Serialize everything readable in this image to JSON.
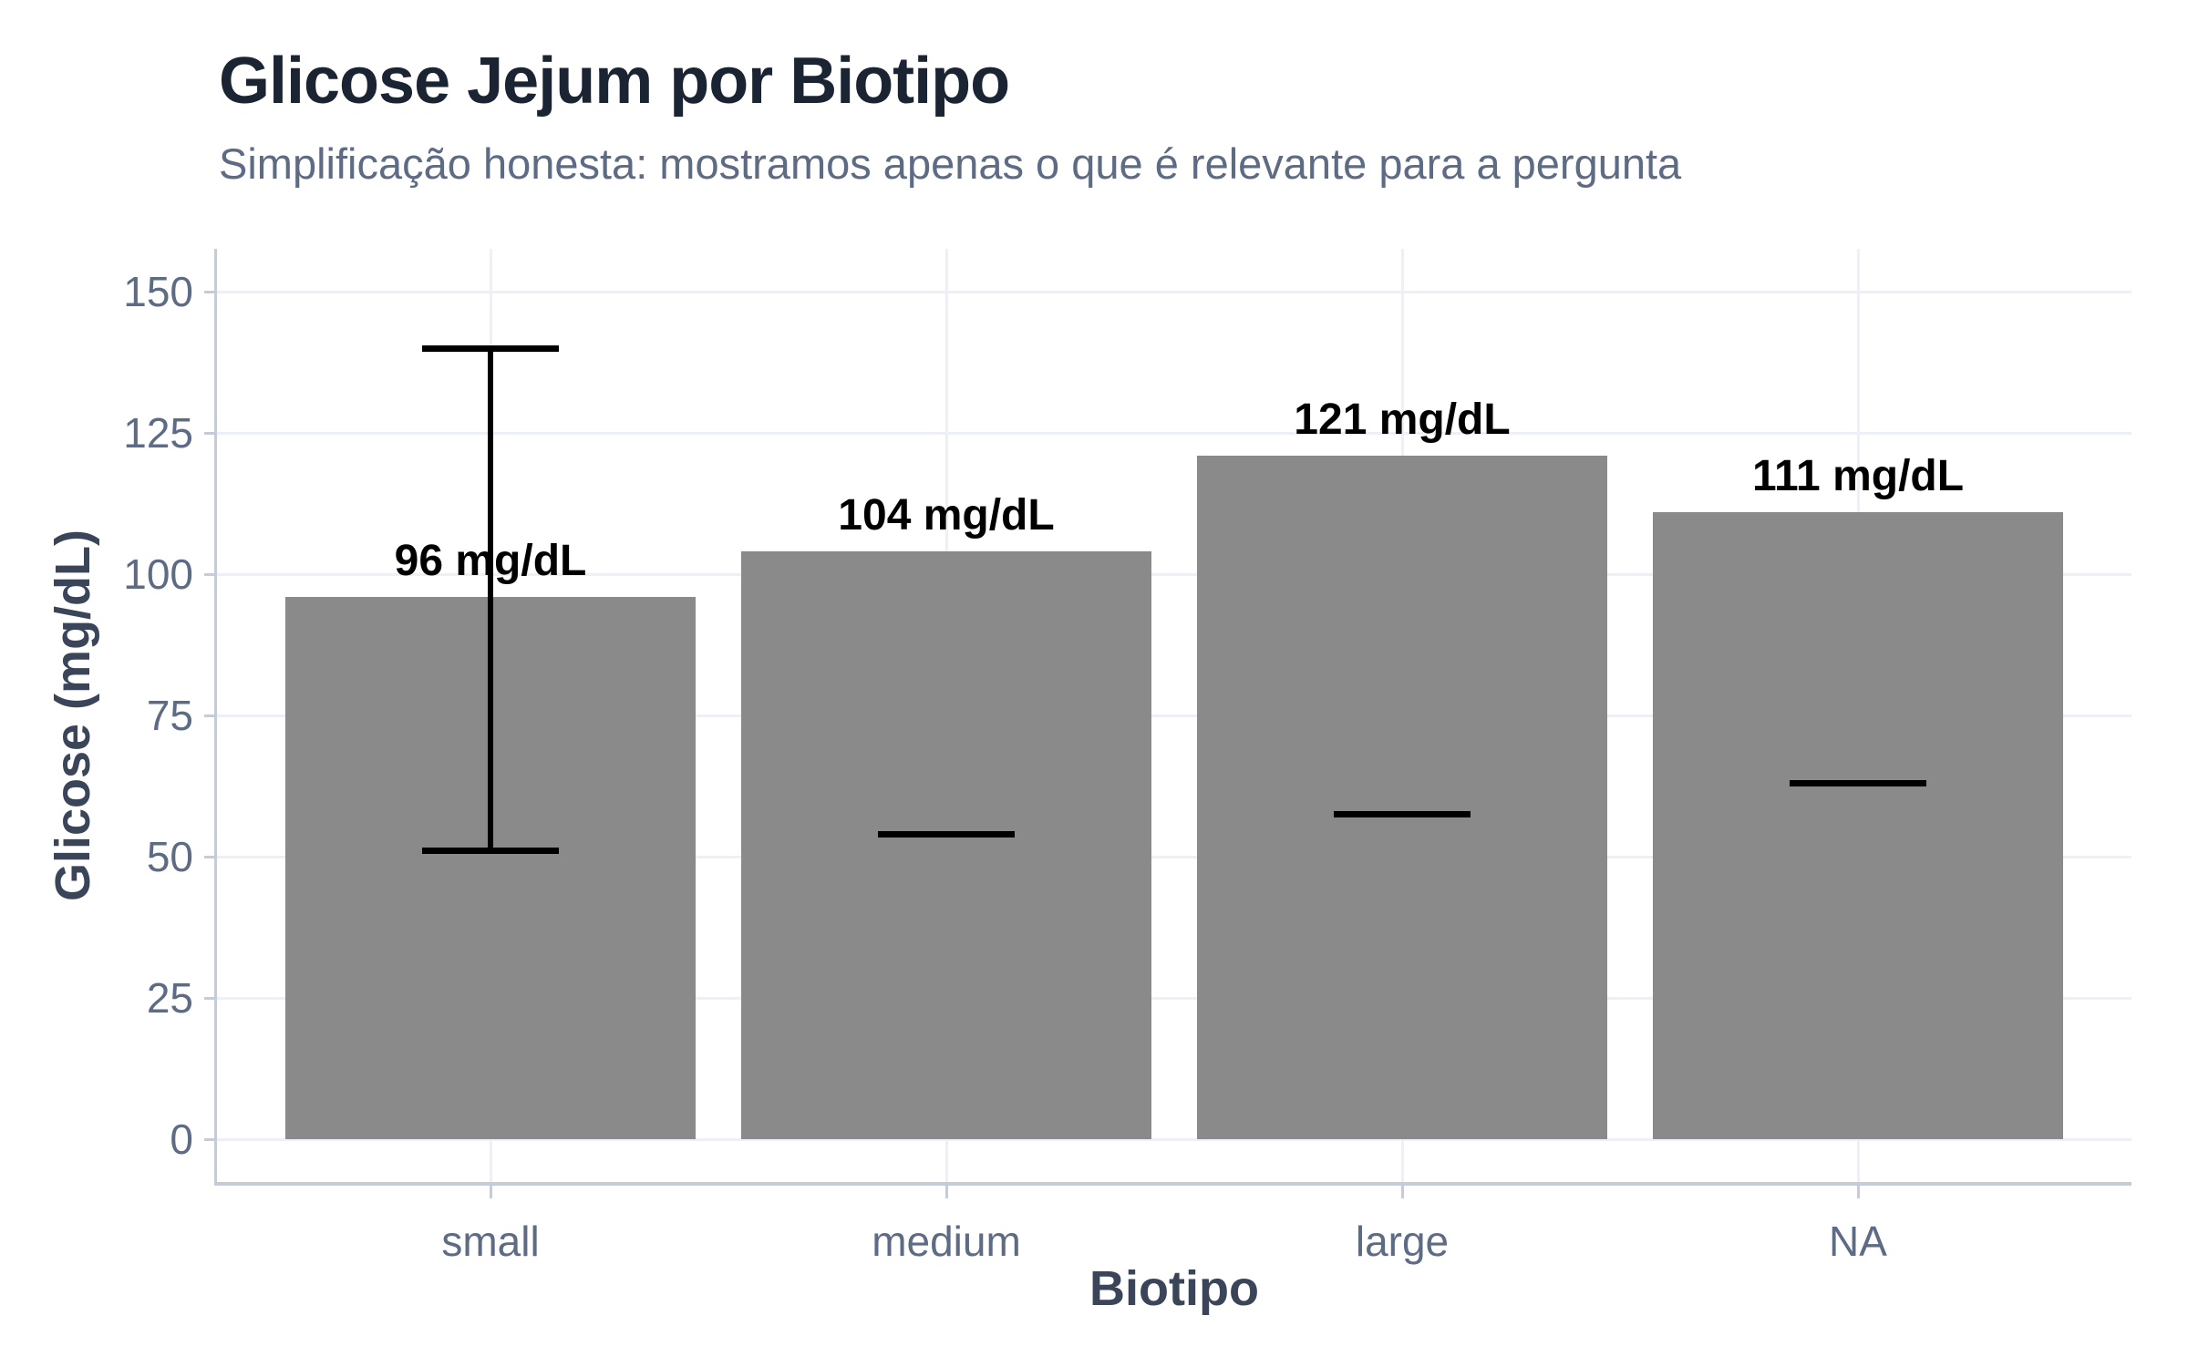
{
  "header": {
    "title": "Glicose Jejum por Biotipo",
    "subtitle": "Simplificação honesta: mostramos apenas o que é relevante para a pergunta"
  },
  "chart_data": {
    "type": "bar",
    "title": "Glicose Jejum por Biotipo",
    "subtitle": "Simplificação honesta: mostramos apenas o que é relevante para a pergunta",
    "xlabel": "Biotipo",
    "ylabel": "Glicose (mg/dL)",
    "categories": [
      "small",
      "medium",
      "large",
      "NA"
    ],
    "values": [
      96,
      104,
      121,
      111
    ],
    "bar_labels": [
      "96 mg/dL",
      "104 mg/dL",
      "121 mg/dL",
      "111 mg/dL"
    ],
    "error_bars": [
      {
        "category": "small",
        "index": 0,
        "low": 51,
        "high": 140
      }
    ],
    "dash_markers": [
      {
        "category": "medium",
        "index": 1,
        "value": 54
      },
      {
        "category": "large",
        "index": 2,
        "value": 57.5
      },
      {
        "category": "NA",
        "index": 3,
        "value": 63
      }
    ],
    "y_ticks": [
      0,
      25,
      50,
      75,
      100,
      125,
      150
    ],
    "ylim": [
      0,
      150
    ],
    "grid": "light major gridlines: horizontal at y ticks, vertical at category centers; no minor gridlines",
    "legend": "none"
  },
  "style": {
    "bar_color": "#8a8a8b",
    "grid_color": "#edf1f7",
    "axis_line_color": "#c3cdda",
    "tick_label_color": "#5d6b84",
    "axis_title_color": "#3a4559",
    "title_color": "#1b2433",
    "subtitle_color": "#5d6b84",
    "annotation_color": "#000000",
    "background_color": "#ffffff"
  }
}
